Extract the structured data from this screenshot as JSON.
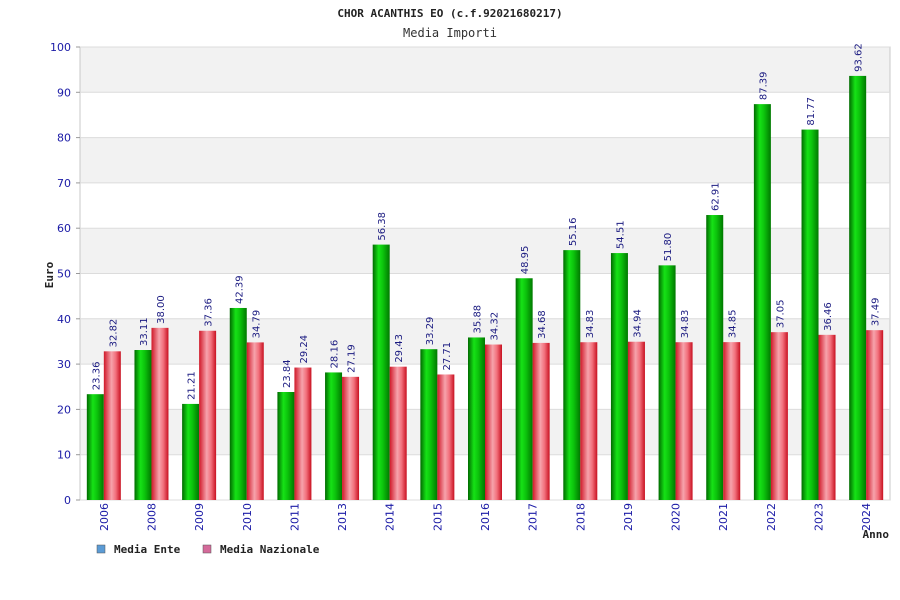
{
  "chart_data": {
    "type": "bar",
    "title": "CHOR ACANTHIS EO (c.f.92021680217)",
    "subtitle": "Media Importi",
    "xlabel": "Anno",
    "ylabel": "Euro",
    "ylim": [
      0,
      100
    ],
    "yticks": [
      0,
      10,
      20,
      30,
      40,
      50,
      60,
      70,
      80,
      90,
      100
    ],
    "grid": true,
    "legend_position": "bottom-left",
    "categories": [
      "2006",
      "2008",
      "2009",
      "2010",
      "2011",
      "2013",
      "2014",
      "2015",
      "2016",
      "2017",
      "2018",
      "2019",
      "2020",
      "2021",
      "2022",
      "2023",
      "2024"
    ],
    "series": [
      {
        "name": "Media Ente",
        "color": "#00a000",
        "legend_color": "#5b9bd5",
        "values": [
          23.36,
          33.11,
          21.21,
          42.39,
          23.84,
          28.16,
          56.38,
          33.29,
          35.88,
          48.95,
          55.16,
          54.51,
          51.8,
          62.91,
          87.39,
          81.77,
          93.62
        ],
        "labels": [
          "23.36",
          "33.11",
          "21.21",
          "42.39",
          "23.84",
          "28.16",
          "56.38",
          "33.29",
          "35.88",
          "48.95",
          "55.16",
          "54.51",
          "51.80",
          "62.91",
          "87.39",
          "81.77",
          "93.62"
        ]
      },
      {
        "name": "Media Nazionale",
        "color": "#e03040",
        "legend_color": "#d46a9a",
        "values": [
          32.82,
          38.0,
          37.36,
          34.79,
          29.24,
          27.19,
          29.43,
          27.71,
          34.32,
          34.68,
          34.83,
          34.94,
          34.83,
          34.85,
          37.05,
          36.46,
          37.49
        ],
        "labels": [
          "32.82",
          "38.00",
          "37.36",
          "34.79",
          "29.24",
          "27.19",
          "29.43",
          "27.71",
          "34.32",
          "34.68",
          "34.83",
          "34.94",
          "34.83",
          "34.85",
          "37.05",
          "36.46",
          "37.49"
        ]
      }
    ]
  }
}
